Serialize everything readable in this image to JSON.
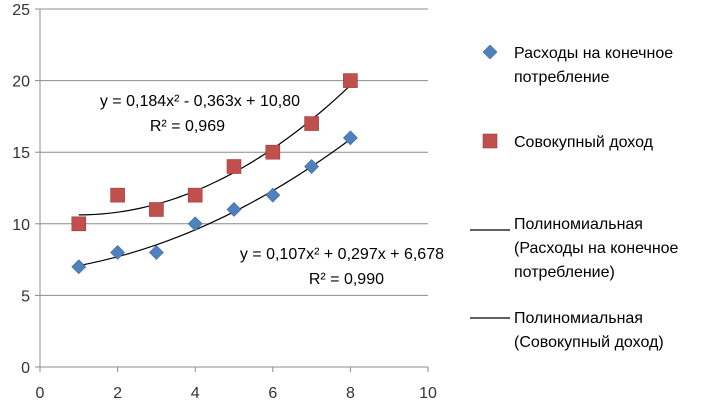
{
  "chart_data": {
    "type": "scatter",
    "xlim": [
      0,
      10
    ],
    "ylim": [
      0,
      25
    ],
    "x_ticks": [
      "0",
      "2",
      "4",
      "6",
      "8",
      "10"
    ],
    "y_ticks": [
      "0",
      "5",
      "10",
      "15",
      "20",
      "25"
    ],
    "grid": "horizontal",
    "legend_position": "right",
    "series": [
      {
        "name": "Расходы на конечное потребление",
        "marker": "diamond",
        "color": "#4F81BD",
        "x": [
          1,
          2,
          3,
          4,
          5,
          6,
          7,
          8
        ],
        "y": [
          7,
          8,
          8,
          10,
          11,
          12,
          14,
          16
        ]
      },
      {
        "name": "Совокупный доход",
        "marker": "square",
        "color": "#C0504D",
        "x": [
          1,
          2,
          3,
          4,
          5,
          6,
          7,
          8
        ],
        "y": [
          10,
          12,
          11,
          12,
          14,
          15,
          17,
          20
        ]
      }
    ],
    "trendlines": [
      {
        "name": "Полиномиальная (Расходы на конечное потребление)",
        "coefficients": [
          0.107,
          0.297,
          6.678
        ],
        "x_range": [
          1,
          8
        ],
        "equation": "y = 0,107x² + 0,297x + 6,678",
        "r2": "R² = 0,990",
        "color": "#000000"
      },
      {
        "name": "Полиномиальная (Совокупный доход)",
        "coefficients": [
          0.184,
          -0.363,
          10.8
        ],
        "x_range": [
          1,
          8
        ],
        "equation": "y = 0,184x² - 0,363x + 10,80",
        "r2": "R² = 0,969",
        "color": "#000000"
      }
    ]
  },
  "legend": {
    "items": [
      {
        "lines": [
          "Расходы на конечное",
          "потребление"
        ],
        "marker": "diamond",
        "color": "#4F81BD"
      },
      {
        "lines": [
          "Совокупный доход"
        ],
        "marker": "square",
        "color": "#C0504D"
      },
      {
        "lines": [
          "Полиномиальная",
          "(Расходы на конечное",
          "потребление)"
        ],
        "marker": "line",
        "color": "#000000"
      },
      {
        "lines": [
          "Полиномиальная",
          "(Совокупный доход)"
        ],
        "marker": "line",
        "color": "#000000"
      }
    ]
  },
  "colors": {
    "gridline": "#8C8C8C",
    "axis": "#8C8C8C"
  }
}
